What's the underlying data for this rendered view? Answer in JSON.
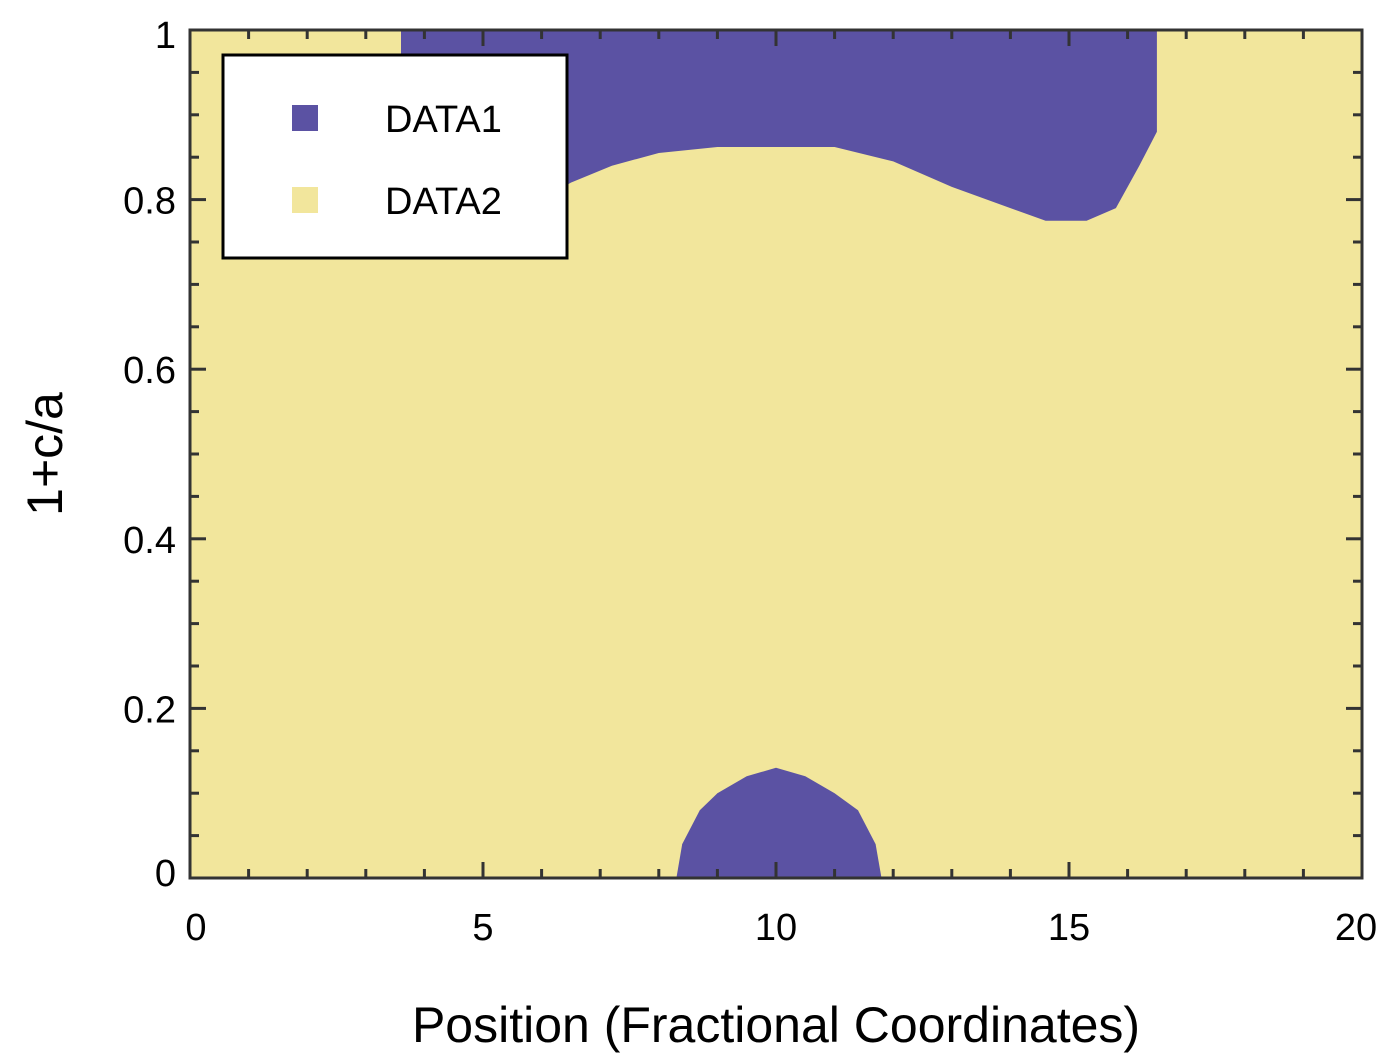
{
  "chart_data": {
    "type": "heatmap",
    "xlabel": "Position  (Fractional  Coordinates)",
    "ylabel": "1+c/a",
    "xlim": [
      0,
      20
    ],
    "ylim": [
      0,
      1
    ],
    "x_ticks": [
      "0",
      "5",
      "10",
      "15",
      "20"
    ],
    "y_ticks": [
      "0",
      "0.2",
      "0.4",
      "0.6",
      "0.8",
      "1"
    ],
    "grid": false,
    "legend_position": "top-left",
    "background_series": "DATA2",
    "series": [
      {
        "name": "DATA1",
        "color": "#5b52a3"
      },
      {
        "name": "DATA2",
        "color": "#f2e69c"
      }
    ],
    "regions": [
      {
        "series": "DATA1",
        "description_points_x": [
          3.6,
          3.6,
          6.0,
          6.5,
          7.2,
          8.0,
          9.0,
          10.0,
          11.0,
          12.0,
          13.0,
          14.0,
          14.6,
          15.3,
          15.8,
          16.2,
          16.5,
          16.5
        ],
        "description_points_y": [
          1.0,
          0.86,
          0.8,
          0.82,
          0.84,
          0.855,
          0.862,
          0.862,
          0.862,
          0.845,
          0.815,
          0.79,
          0.775,
          0.775,
          0.79,
          0.84,
          0.88,
          1.0
        ]
      },
      {
        "series": "DATA1",
        "description_points_x": [
          8.3,
          8.4,
          8.7,
          9.0,
          9.5,
          10.0,
          10.5,
          11.0,
          11.4,
          11.7,
          11.8
        ],
        "description_points_y": [
          0.0,
          0.04,
          0.08,
          0.1,
          0.12,
          0.13,
          0.12,
          0.1,
          0.08,
          0.04,
          0.0
        ]
      }
    ]
  }
}
